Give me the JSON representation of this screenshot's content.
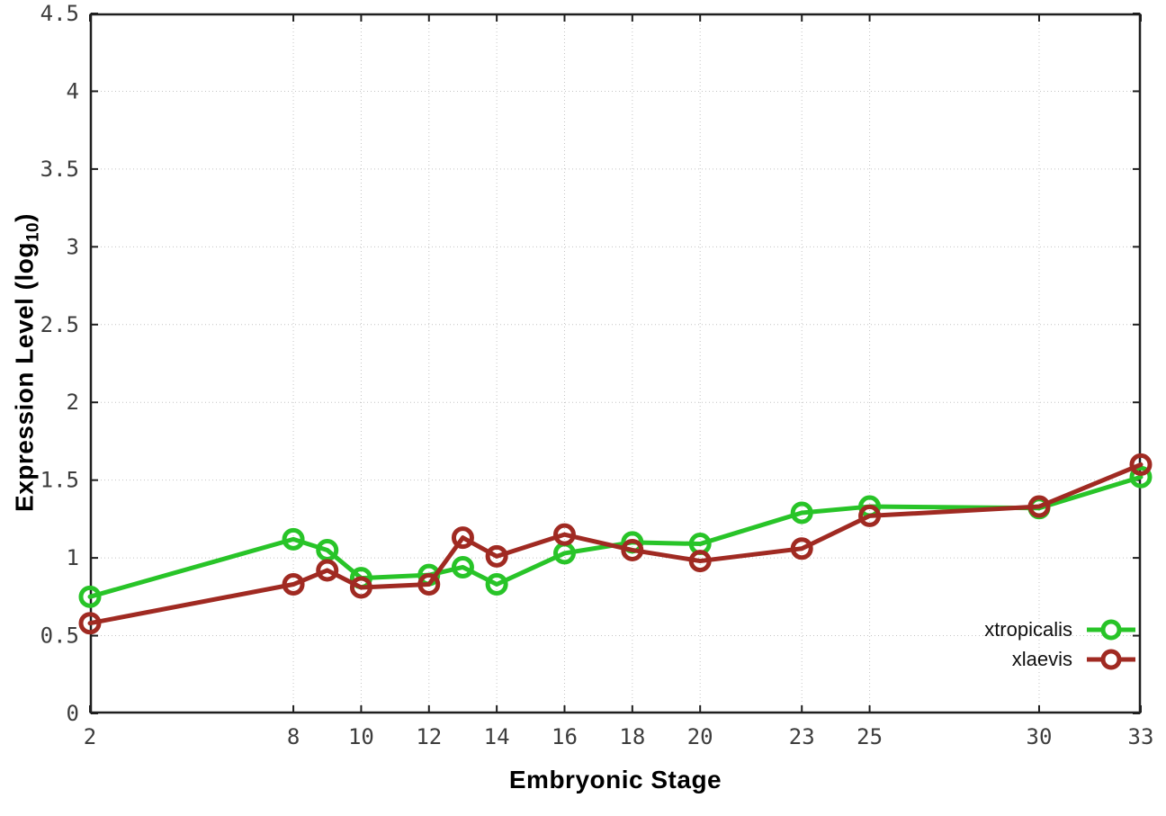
{
  "chart_data": {
    "type": "line",
    "title": "",
    "xlabel": "Embryonic Stage",
    "ylabel": "Expression Level (log10)",
    "ylabel_parts": {
      "prefix": "Expression Level (log",
      "sub": "10",
      "suffix": ")"
    },
    "x": [
      2,
      8,
      9,
      10,
      12,
      13,
      14,
      16,
      18,
      20,
      23,
      25,
      30,
      33
    ],
    "series": [
      {
        "name": "xtropicalis",
        "color": "#28c428",
        "values": [
          0.75,
          1.12,
          1.05,
          0.87,
          0.89,
          0.94,
          0.83,
          1.03,
          1.1,
          1.09,
          1.29,
          1.33,
          1.32,
          1.52
        ]
      },
      {
        "name": "xlaevis",
        "color": "#a02a22",
        "values": [
          0.58,
          0.83,
          0.92,
          0.81,
          0.83,
          1.13,
          1.01,
          1.15,
          1.05,
          0.98,
          1.06,
          1.27,
          1.33,
          1.6
        ]
      }
    ],
    "xlim": [
      2,
      33
    ],
    "ylim": [
      0,
      4.5
    ],
    "xticks": {
      "values": [
        2,
        8,
        10,
        12,
        14,
        16,
        18,
        20,
        23,
        25,
        30,
        33
      ],
      "labels": [
        "2",
        "8",
        "10",
        "12",
        "14",
        "16",
        "18",
        "20",
        "23",
        "25",
        "30",
        "33"
      ]
    },
    "yticks": {
      "values": [
        0,
        0.5,
        1,
        1.5,
        2,
        2.5,
        3,
        3.5,
        4,
        4.5
      ],
      "labels": [
        "0",
        "0.5",
        "1",
        "1.5",
        "2",
        "2.5",
        "3",
        "3.5",
        "4",
        "4.5"
      ]
    },
    "grid": true,
    "legend_position": "bottom-right",
    "marker": "open-circle",
    "style": {
      "grid_color": "#c4c4c4",
      "border_color": "#1f1f1f",
      "tick_color": "#1f1f1f",
      "tick_label_color": "#3d3d3d",
      "line_width": 5,
      "marker_radius": 10
    }
  }
}
